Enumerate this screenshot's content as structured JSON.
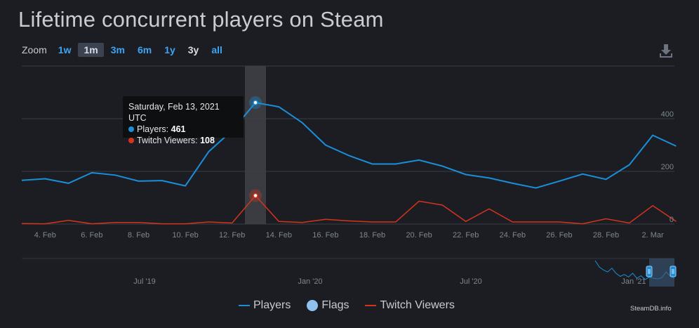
{
  "page": {
    "title": "Lifetime concurrent players on Steam"
  },
  "zoom": {
    "label": "Zoom",
    "options": [
      "1w",
      "1m",
      "3m",
      "6m",
      "1y",
      "3y",
      "all"
    ],
    "active": "1m"
  },
  "icons": {
    "download": "download-icon"
  },
  "colors": {
    "players": "#1a8fd8",
    "twitch": "#d6331d",
    "flags": "#8fc2ee"
  },
  "tooltip": {
    "date": "Saturday, Feb 13, 2021 UTC",
    "players_label": "Players:",
    "players_value": "461",
    "twitch_label": "Twitch Viewers:",
    "twitch_value": "108"
  },
  "chart_data": {
    "type": "line",
    "x": [
      "2021-02-03",
      "2021-02-04",
      "2021-02-05",
      "2021-02-06",
      "2021-02-07",
      "2021-02-08",
      "2021-02-09",
      "2021-02-10",
      "2021-02-11",
      "2021-02-12",
      "2021-02-13",
      "2021-02-14",
      "2021-02-15",
      "2021-02-16",
      "2021-02-17",
      "2021-02-18",
      "2021-02-19",
      "2021-02-20",
      "2021-02-21",
      "2021-02-22",
      "2021-02-23",
      "2021-02-24",
      "2021-02-25",
      "2021-02-26",
      "2021-02-27",
      "2021-02-28",
      "2021-03-01",
      "2021-03-02",
      "2021-03-03"
    ],
    "x_tick_labels": [
      "4. Feb",
      "6. Feb",
      "8. Feb",
      "10. Feb",
      "12. Feb",
      "14. Feb",
      "16. Feb",
      "18. Feb",
      "20. Feb",
      "22. Feb",
      "24. Feb",
      "26. Feb",
      "28. Feb",
      "2. Mar"
    ],
    "y_tick_labels": [
      "0",
      "200",
      "400"
    ],
    "ylim": [
      0,
      600
    ],
    "series": [
      {
        "name": "Players",
        "values": [
          166,
          172,
          155,
          195,
          186,
          163,
          165,
          145,
          275,
          355,
          461,
          445,
          385,
          300,
          260,
          228,
          228,
          243,
          220,
          188,
          175,
          155,
          137,
          163,
          190,
          170,
          225,
          337,
          296
        ]
      },
      {
        "name": "Twitch Viewers",
        "values": [
          2,
          1,
          14,
          1,
          6,
          6,
          1,
          1,
          8,
          4,
          108,
          10,
          6,
          18,
          12,
          8,
          8,
          87,
          72,
          10,
          58,
          8,
          8,
          8,
          1,
          20,
          4,
          70,
          10
        ]
      }
    ],
    "highlight": {
      "x": "2021-02-13"
    },
    "legend": [
      "Players",
      "Flags",
      "Twitch Viewers"
    ],
    "navigator_x_labels": [
      "Jul '19",
      "Jan '20",
      "Jul '20",
      "Jan '21"
    ],
    "navigator_series": [
      40,
      30,
      25,
      22,
      28,
      20,
      15,
      18,
      14,
      20,
      12,
      16,
      10,
      14,
      12,
      11,
      13,
      22,
      15,
      12
    ]
  },
  "credit": "SteamDB.info"
}
